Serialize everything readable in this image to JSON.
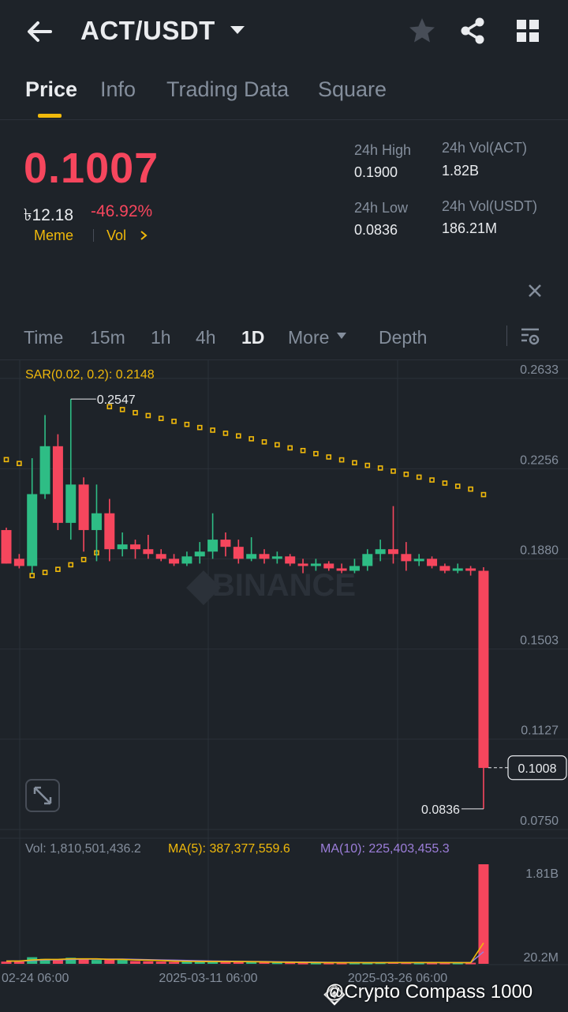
{
  "header": {
    "pair": "ACT/USDT",
    "icons": [
      "back-arrow-icon",
      "caret-down-icon",
      "star-icon",
      "share-icon",
      "grid-icon"
    ]
  },
  "tabs": [
    {
      "label": "Price",
      "active": true
    },
    {
      "label": "Info",
      "active": false
    },
    {
      "label": "Trading Data",
      "active": false
    },
    {
      "label": "Square",
      "active": false
    }
  ],
  "ticker": {
    "price": "0.1007",
    "fiat": "৳12.18",
    "change": "-46.92%",
    "tags": [
      "Meme",
      "Vol"
    ],
    "high_label": "24h High",
    "high": "0.1900",
    "low_label": "24h Low",
    "low": "0.0836",
    "vol_base_label": "24h Vol(ACT)",
    "vol_base": "1.82B",
    "vol_quote_label": "24h Vol(USDT)",
    "vol_quote": "186.21M",
    "down_color": "#f6465d",
    "up_color": "#2ebd85",
    "accent": "#f0b90b"
  },
  "intervals": [
    {
      "label": "Time",
      "active": false
    },
    {
      "label": "15m",
      "active": false
    },
    {
      "label": "1h",
      "active": false
    },
    {
      "label": "4h",
      "active": false
    },
    {
      "label": "1D",
      "active": true
    },
    {
      "label": "More",
      "active": false
    },
    {
      "label": "Depth",
      "active": false
    }
  ],
  "chart_data": {
    "type": "candlestick",
    "watermark": "BINANCE",
    "indicator_label": "SAR(0.02, 0.2): 0.2148",
    "price_ticks": [
      "0.2633",
      "0.2256",
      "0.1880",
      "0.1503",
      "0.1127",
      "0.0750"
    ],
    "price_ticks_values": [
      0.2633,
      0.2256,
      0.188,
      0.1503,
      0.1127,
      0.075
    ],
    "ylim": [
      0.075,
      0.2633
    ],
    "max_label": "0.2547",
    "max_value": 0.2547,
    "min_label": "0.0836",
    "min_value": 0.0836,
    "last_price_label": "0.1008",
    "last_price": 0.1008,
    "x_labels": [
      "02-24 06:00",
      "2025-03-11 06:00",
      "2025-03-26 06:00"
    ],
    "candles": [
      {
        "o": 0.2,
        "h": 0.201,
        "c": 0.186,
        "l": 0.186
      },
      {
        "o": 0.188,
        "h": 0.19,
        "c": 0.185,
        "l": 0.184
      },
      {
        "o": 0.185,
        "h": 0.23,
        "c": 0.215,
        "l": 0.182
      },
      {
        "o": 0.215,
        "h": 0.248,
        "c": 0.235,
        "l": 0.213
      },
      {
        "o": 0.235,
        "h": 0.24,
        "c": 0.203,
        "l": 0.2
      },
      {
        "o": 0.203,
        "h": 0.2547,
        "c": 0.219,
        "l": 0.196
      },
      {
        "o": 0.219,
        "h": 0.222,
        "c": 0.2,
        "l": 0.191
      },
      {
        "o": 0.2,
        "h": 0.219,
        "c": 0.207,
        "l": 0.187
      },
      {
        "o": 0.207,
        "h": 0.213,
        "c": 0.192,
        "l": 0.187
      },
      {
        "o": 0.192,
        "h": 0.199,
        "c": 0.194,
        "l": 0.189
      },
      {
        "o": 0.194,
        "h": 0.196,
        "c": 0.192,
        "l": 0.188
      },
      {
        "o": 0.192,
        "h": 0.198,
        "c": 0.19,
        "l": 0.188
      },
      {
        "o": 0.19,
        "h": 0.192,
        "c": 0.188,
        "l": 0.187
      },
      {
        "o": 0.188,
        "h": 0.19,
        "c": 0.186,
        "l": 0.185
      },
      {
        "o": 0.186,
        "h": 0.191,
        "c": 0.189,
        "l": 0.185
      },
      {
        "o": 0.189,
        "h": 0.195,
        "c": 0.191,
        "l": 0.186
      },
      {
        "o": 0.191,
        "h": 0.207,
        "c": 0.196,
        "l": 0.188
      },
      {
        "o": 0.196,
        "h": 0.199,
        "c": 0.193,
        "l": 0.189
      },
      {
        "o": 0.193,
        "h": 0.196,
        "c": 0.188,
        "l": 0.186
      },
      {
        "o": 0.188,
        "h": 0.197,
        "c": 0.19,
        "l": 0.187
      },
      {
        "o": 0.19,
        "h": 0.192,
        "c": 0.188,
        "l": 0.186
      },
      {
        "o": 0.188,
        "h": 0.191,
        "c": 0.189,
        "l": 0.186
      },
      {
        "o": 0.189,
        "h": 0.19,
        "c": 0.186,
        "l": 0.185
      },
      {
        "o": 0.186,
        "h": 0.188,
        "c": 0.185,
        "l": 0.182
      },
      {
        "o": 0.185,
        "h": 0.188,
        "c": 0.186,
        "l": 0.183
      },
      {
        "o": 0.186,
        "h": 0.187,
        "c": 0.184,
        "l": 0.183
      },
      {
        "o": 0.184,
        "h": 0.186,
        "c": 0.183,
        "l": 0.182
      },
      {
        "o": 0.183,
        "h": 0.188,
        "c": 0.185,
        "l": 0.182
      },
      {
        "o": 0.185,
        "h": 0.192,
        "c": 0.19,
        "l": 0.183
      },
      {
        "o": 0.19,
        "h": 0.196,
        "c": 0.192,
        "l": 0.187
      },
      {
        "o": 0.192,
        "h": 0.21,
        "c": 0.19,
        "l": 0.186
      },
      {
        "o": 0.19,
        "h": 0.195,
        "c": 0.187,
        "l": 0.183
      },
      {
        "o": 0.187,
        "h": 0.19,
        "c": 0.188,
        "l": 0.185
      },
      {
        "o": 0.188,
        "h": 0.189,
        "c": 0.185,
        "l": 0.184
      },
      {
        "o": 0.185,
        "h": 0.186,
        "c": 0.183,
        "l": 0.182
      },
      {
        "o": 0.183,
        "h": 0.186,
        "c": 0.184,
        "l": 0.182
      },
      {
        "o": 0.184,
        "h": 0.185,
        "c": 0.183,
        "l": 0.181
      },
      {
        "o": 0.183,
        "h": 0.1845,
        "c": 0.1007,
        "l": 0.0836
      }
    ],
    "sar": [
      0.2294,
      0.2278,
      0.181,
      0.1823,
      0.1836,
      0.1855,
      0.1877,
      0.1905,
      0.2515,
      0.2503,
      0.249,
      0.2478,
      0.2466,
      0.2454,
      0.2441,
      0.2428,
      0.2417,
      0.2404,
      0.2393,
      0.2381,
      0.2368,
      0.2356,
      0.2343,
      0.2332,
      0.2319,
      0.2305,
      0.2293,
      0.2281,
      0.227,
      0.2259,
      0.2246,
      0.2233,
      0.2221,
      0.2209,
      0.2196,
      0.2183,
      0.2171,
      0.2148
    ],
    "volume": {
      "label": "Vol: 1,810,501,436.2",
      "ma5_label": "MA(5): 387,377,559.6",
      "ma10_label": "MA(10): 225,403,455.3",
      "ticks": [
        "1.81B",
        "20.2M"
      ],
      "ylim": [
        0,
        1.81
      ],
      "values": [
        0.04,
        0.04,
        0.12,
        0.09,
        0.07,
        0.11,
        0.08,
        0.07,
        0.08,
        0.07,
        0.05,
        0.045,
        0.04,
        0.035,
        0.04,
        0.04,
        0.05,
        0.04,
        0.035,
        0.03,
        0.03,
        0.025,
        0.025,
        0.02,
        0.02,
        0.02,
        0.02,
        0.02,
        0.02,
        0.025,
        0.03,
        0.025,
        0.02,
        0.02,
        0.02,
        0.02,
        0.02,
        1.81
      ],
      "ma5": [
        0.05,
        0.05,
        0.07,
        0.08,
        0.08,
        0.09,
        0.09,
        0.09,
        0.08,
        0.08,
        0.07,
        0.065,
        0.06,
        0.05,
        0.045,
        0.04,
        0.04,
        0.04,
        0.04,
        0.038,
        0.035,
        0.03,
        0.028,
        0.025,
        0.023,
        0.022,
        0.021,
        0.02,
        0.02,
        0.021,
        0.022,
        0.023,
        0.023,
        0.023,
        0.022,
        0.021,
        0.02,
        0.38
      ],
      "ma10": [
        0.05,
        0.05,
        0.06,
        0.07,
        0.075,
        0.08,
        0.085,
        0.085,
        0.085,
        0.085,
        0.08,
        0.075,
        0.07,
        0.065,
        0.06,
        0.055,
        0.05,
        0.048,
        0.045,
        0.042,
        0.04,
        0.037,
        0.034,
        0.031,
        0.029,
        0.027,
        0.025,
        0.024,
        0.023,
        0.022,
        0.022,
        0.022,
        0.022,
        0.022,
        0.022,
        0.022,
        0.021,
        0.22
      ],
      "ma5_color": "#f0b90b",
      "ma10_color": "#9c7ed9"
    }
  },
  "footer_overlay": {
    "watermark": "@Crypto Compass 1000"
  }
}
